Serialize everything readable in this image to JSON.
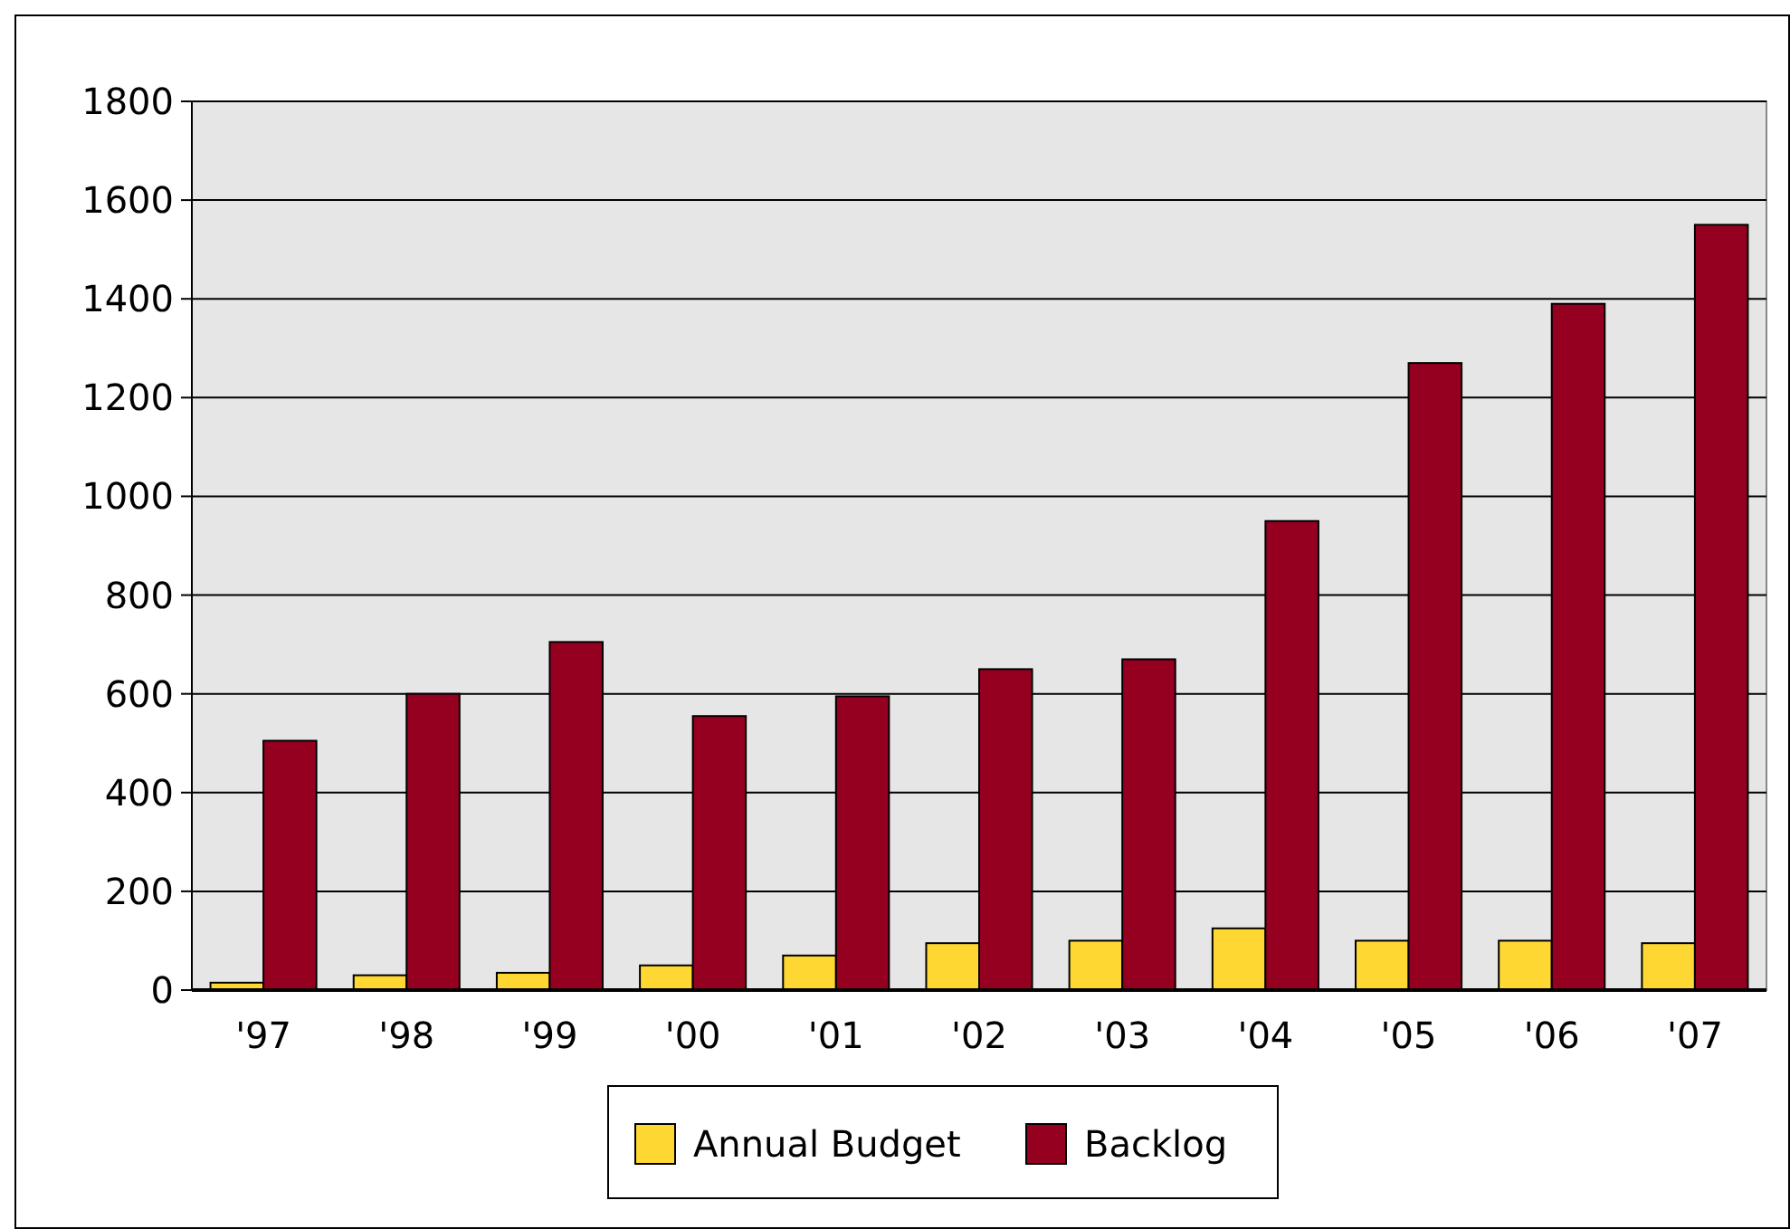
{
  "chart_data": {
    "type": "bar",
    "categories": [
      "'97",
      "'98",
      "'99",
      "'00",
      "'01",
      "'02",
      "'03",
      "'04",
      "'05",
      "'06",
      "'07"
    ],
    "series": [
      {
        "name": "Annual Budget",
        "color": "#ffd733",
        "values": [
          15,
          30,
          35,
          50,
          70,
          95,
          100,
          125,
          100,
          100,
          95
        ]
      },
      {
        "name": "Backlog",
        "color": "#960020",
        "values": [
          505,
          600,
          705,
          555,
          595,
          650,
          670,
          950,
          1270,
          1390,
          1550
        ]
      }
    ],
    "ylim": [
      0,
      1800
    ],
    "yticks": [
      0,
      200,
      400,
      600,
      800,
      1000,
      1200,
      1400,
      1600,
      1800
    ],
    "grid": "y",
    "legend": "bottom"
  }
}
